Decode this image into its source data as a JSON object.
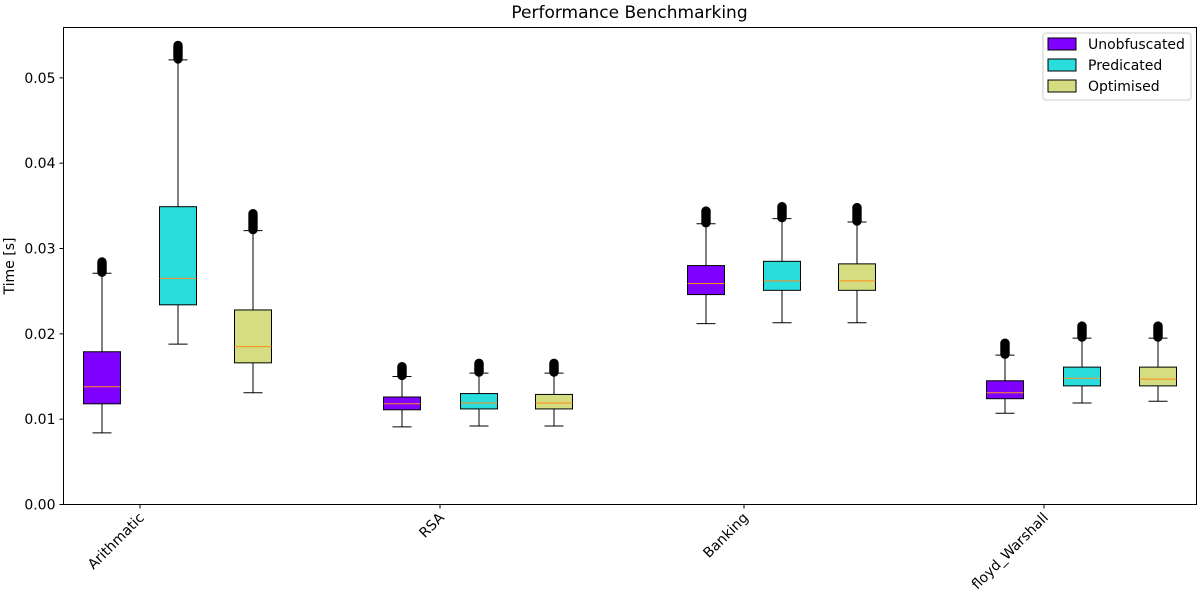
{
  "chart_data": {
    "type": "boxplot",
    "title": "Performance Benchmarking",
    "xlabel": "",
    "ylabel": "Time [s]",
    "ylim": [
      0,
      0.056
    ],
    "yticks": [
      "0.00",
      "0.01",
      "0.02",
      "0.03",
      "0.04",
      "0.05"
    ],
    "categories": [
      "Arithmatic",
      "RSA",
      "Banking",
      "floyd_Warshall"
    ],
    "grid": false,
    "legend_position": "top-right",
    "series": [
      {
        "name": "Unobfuscated",
        "color": "#8000ff",
        "boxes": [
          {
            "whisker_low": 0.0084,
            "q1": 0.0118,
            "median": 0.0138,
            "q3": 0.0179,
            "whisker_high": 0.0271,
            "outliers_max": 0.0285
          },
          {
            "whisker_low": 0.0091,
            "q1": 0.0111,
            "median": 0.0118,
            "q3": 0.0126,
            "whisker_high": 0.015,
            "outliers_max": 0.0162
          },
          {
            "whisker_low": 0.0212,
            "q1": 0.0246,
            "median": 0.0259,
            "q3": 0.028,
            "whisker_high": 0.0329,
            "outliers_max": 0.0345
          },
          {
            "whisker_low": 0.0107,
            "q1": 0.0124,
            "median": 0.0131,
            "q3": 0.0145,
            "whisker_high": 0.0175,
            "outliers_max": 0.019
          }
        ]
      },
      {
        "name": "Predicated",
        "color": "#2adddd",
        "boxes": [
          {
            "whisker_low": 0.0188,
            "q1": 0.0234,
            "median": 0.0265,
            "q3": 0.0349,
            "whisker_high": 0.0521,
            "outliers_max": 0.0538
          },
          {
            "whisker_low": 0.0092,
            "q1": 0.0112,
            "median": 0.0119,
            "q3": 0.013,
            "whisker_high": 0.0154,
            "outliers_max": 0.0166
          },
          {
            "whisker_low": 0.0213,
            "q1": 0.0251,
            "median": 0.0262,
            "q3": 0.0285,
            "whisker_high": 0.0335,
            "outliers_max": 0.035
          },
          {
            "whisker_low": 0.0119,
            "q1": 0.0139,
            "median": 0.0148,
            "q3": 0.0161,
            "whisker_high": 0.0195,
            "outliers_max": 0.021
          }
        ]
      },
      {
        "name": "Optimised",
        "color": "#d4dd80",
        "boxes": [
          {
            "whisker_low": 0.0131,
            "q1": 0.0166,
            "median": 0.0185,
            "q3": 0.0228,
            "whisker_high": 0.0321,
            "outliers_max": 0.0341
          },
          {
            "whisker_low": 0.0092,
            "q1": 0.0112,
            "median": 0.0119,
            "q3": 0.0129,
            "whisker_high": 0.0154,
            "outliers_max": 0.0166
          },
          {
            "whisker_low": 0.0213,
            "q1": 0.0251,
            "median": 0.0262,
            "q3": 0.0282,
            "whisker_high": 0.0331,
            "outliers_max": 0.0348
          },
          {
            "whisker_low": 0.0121,
            "q1": 0.0139,
            "median": 0.0147,
            "q3": 0.0161,
            "whisker_high": 0.0195,
            "outliers_max": 0.021
          }
        ]
      }
    ],
    "median_color": "#ff8c1a"
  }
}
